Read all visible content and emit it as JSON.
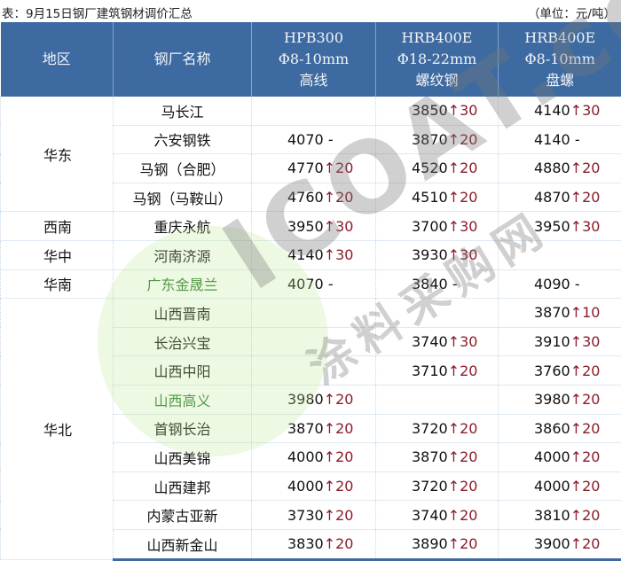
{
  "caption": {
    "title": "表：9月15日钢厂建筑钢材调价汇总",
    "unit": "（单位：元/吨）"
  },
  "header": {
    "region": "地区",
    "mill": "钢厂名称",
    "col1": [
      "HPB300",
      "Φ8-10mm",
      "高线"
    ],
    "col2": [
      "HRB400E",
      "Φ18-22mm",
      "螺纹钢"
    ],
    "col3": [
      "HRB400E",
      "Φ8-10mm",
      "盘螺"
    ]
  },
  "colors": {
    "header_bg": "#3d6aa0",
    "increase": "#8a1c2a",
    "green_mill": "#2c7a2c"
  },
  "regions": [
    {
      "name": "华东",
      "span": 4
    },
    {
      "name": "西南",
      "span": 1
    },
    {
      "name": "华中",
      "span": 1
    },
    {
      "name": "华南",
      "span": 1
    },
    {
      "name": "华北",
      "span": 9
    }
  ],
  "rows": [
    {
      "mill": "马长江",
      "p": [
        null,
        [
          "3850",
          "↑30"
        ],
        [
          "4140",
          "↑30"
        ]
      ]
    },
    {
      "mill": "六安钢铁",
      "p": [
        [
          "4070",
          "-"
        ],
        [
          "3870",
          "↑20"
        ],
        [
          "4140",
          "-"
        ]
      ]
    },
    {
      "mill": "马钢（合肥）",
      "p": [
        [
          "4770",
          "↑20"
        ],
        [
          "4520",
          "↑20"
        ],
        [
          "4880",
          "↑20"
        ]
      ]
    },
    {
      "mill": "马钢（马鞍山）",
      "p": [
        [
          "4760",
          "↑20"
        ],
        [
          "4510",
          "↑20"
        ],
        [
          "4870",
          "↑20"
        ]
      ]
    },
    {
      "mill": "重庆永航",
      "p": [
        [
          "3950",
          "↑30"
        ],
        [
          "3700",
          "↑30"
        ],
        [
          "3950",
          "↑30"
        ]
      ]
    },
    {
      "mill": "河南济源",
      "p": [
        [
          "4140",
          "↑30"
        ],
        [
          "3930",
          "↑30"
        ],
        null
      ]
    },
    {
      "mill": "广东金晟兰",
      "green": true,
      "p": [
        [
          "4070",
          "-"
        ],
        [
          "3840",
          "-"
        ],
        [
          "4090",
          "-"
        ]
      ]
    },
    {
      "mill": "山西晋南",
      "p": [
        null,
        null,
        [
          "3870",
          "↑10"
        ]
      ]
    },
    {
      "mill": "长治兴宝",
      "p": [
        null,
        [
          "3740",
          "↑30"
        ],
        [
          "3910",
          "↑30"
        ]
      ]
    },
    {
      "mill": "山西中阳",
      "p": [
        null,
        [
          "3710",
          "↑20"
        ],
        [
          "3760",
          "↑20"
        ]
      ]
    },
    {
      "mill": "山西高义",
      "green": true,
      "p": [
        [
          "3980",
          "↑20"
        ],
        null,
        [
          "3980",
          "↑20"
        ]
      ]
    },
    {
      "mill": "首钢长治",
      "p": [
        [
          "3870",
          "↑20"
        ],
        [
          "3720",
          "↑20"
        ],
        [
          "3860",
          "↑20"
        ]
      ]
    },
    {
      "mill": "山西美锦",
      "p": [
        [
          "4000",
          "↑20"
        ],
        [
          "3870",
          "↑20"
        ],
        [
          "4000",
          "↑20"
        ]
      ]
    },
    {
      "mill": "山西建邦",
      "p": [
        [
          "4000",
          "↑20"
        ],
        [
          "3720",
          "↑20"
        ],
        [
          "4000",
          "↑20"
        ]
      ]
    },
    {
      "mill": "内蒙古亚新",
      "p": [
        [
          "3730",
          "↑20"
        ],
        [
          "3740",
          "↑20"
        ],
        [
          "3810",
          "↑20"
        ]
      ]
    },
    {
      "mill": "山西新金山",
      "p": [
        [
          "3830",
          "↑20"
        ],
        [
          "3890",
          "↑20"
        ],
        [
          "3900",
          "↑20"
        ]
      ]
    }
  ],
  "watermark": {
    "text": "ICOAT.cc",
    "sub": "涂料采购网"
  }
}
